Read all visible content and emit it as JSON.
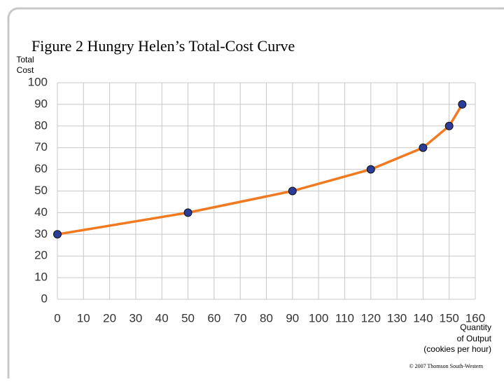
{
  "chart_data": {
    "type": "line",
    "title": "Figure 2 Hungry Helen’s Total-Cost Curve",
    "ylabel": [
      "Total",
      "Cost"
    ],
    "xlabel": [
      "Quantity",
      "of Output",
      "(cookies per hour)"
    ],
    "footnote": "© 2007 Thomson South-Western",
    "x": [
      0,
      50,
      90,
      120,
      140,
      150,
      155
    ],
    "series": [
      {
        "color": "#ef7a22",
        "marker_color": "#2b3c99",
        "values": [
          30,
          40,
          50,
          60,
          70,
          80,
          90
        ]
      }
    ],
    "xlim": [
      0,
      160
    ],
    "xticks": [
      0,
      10,
      20,
      30,
      40,
      50,
      60,
      70,
      80,
      90,
      100,
      110,
      120,
      130,
      140,
      150,
      160
    ],
    "ylim": [
      0,
      100
    ],
    "yticks": [
      0,
      10,
      20,
      30,
      40,
      50,
      60,
      70,
      80,
      90,
      100
    ],
    "grid": true
  }
}
